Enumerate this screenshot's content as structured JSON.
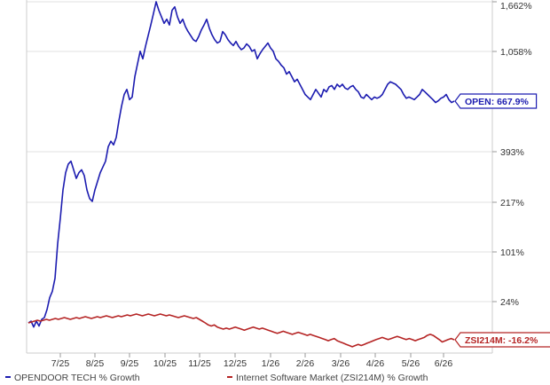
{
  "chart_data": {
    "type": "line",
    "title": "",
    "xlabel": "",
    "ylabel": "",
    "y_scale": "log-like (% growth)",
    "grid": "horizontal",
    "legend_position": "bottom-left",
    "x_ticks": [
      "7/25",
      "8/25",
      "9/25",
      "10/25",
      "11/25",
      "12/25",
      "1/26",
      "2/26",
      "3/26",
      "4/26",
      "5/26",
      "6/26"
    ],
    "y_ticks": [
      "1,662%",
      "1,058%",
      "667.9%",
      "393%",
      "217%",
      "101%",
      "24%",
      "-16.2%"
    ],
    "series": [
      {
        "name": "OPENDOOR TECH % Growth",
        "color": "#1c1cb0",
        "callout": "OPEN: 667.9%",
        "end_value": 667.9,
        "values": [
          0,
          2,
          -4,
          2,
          -3,
          4,
          6,
          15,
          30,
          40,
          60,
          120,
          180,
          260,
          320,
          350,
          360,
          330,
          300,
          320,
          330,
          310,
          260,
          230,
          220,
          260,
          290,
          320,
          340,
          360,
          420,
          450,
          430,
          470,
          560,
          640,
          720,
          760,
          680,
          700,
          860,
          960,
          1060,
          1000,
          1120,
          1250,
          1380,
          1520,
          1662,
          1560,
          1480,
          1400,
          1450,
          1380,
          1560,
          1600,
          1480,
          1400,
          1450,
          1360,
          1300,
          1250,
          1200,
          1180,
          1240,
          1320,
          1380,
          1450,
          1340,
          1260,
          1200,
          1160,
          1180,
          1300,
          1260,
          1200,
          1160,
          1130,
          1180,
          1120,
          1080,
          1100,
          1150,
          1120,
          1060,
          1080,
          1000,
          1040,
          1080,
          1120,
          1160,
          1100,
          1060,
          1000,
          980,
          950,
          930,
          880,
          900,
          860,
          820,
          840,
          800,
          760,
          720,
          700,
          680,
          720,
          760,
          730,
          700,
          760,
          740,
          780,
          790,
          760,
          800,
          780,
          800,
          770,
          760,
          780,
          790,
          760,
          740,
          700,
          690,
          720,
          700,
          680,
          700,
          690,
          700,
          720,
          760,
          800,
          820,
          810,
          800,
          780,
          760,
          720,
          690,
          700,
          690,
          680,
          700,
          720,
          760,
          740,
          720,
          700,
          680,
          660,
          670,
          690,
          700,
          720,
          680,
          660,
          667.9
        ]
      },
      {
        "name": "Internet Software Market (ZSI214M) % Growth",
        "color": "#b52424",
        "callout": "ZSI214M: -16.2%",
        "end_value": -16.2,
        "values": [
          0,
          1,
          2,
          3,
          2,
          3,
          4,
          3,
          4,
          5,
          4,
          5,
          6,
          5,
          4,
          5,
          6,
          5,
          6,
          7,
          6,
          5,
          6,
          7,
          6,
          7,
          8,
          7,
          6,
          7,
          8,
          7,
          8,
          9,
          8,
          9,
          10,
          9,
          8,
          9,
          10,
          9,
          8,
          9,
          10,
          9,
          8,
          9,
          8,
          7,
          6,
          7,
          8,
          7,
          6,
          5,
          6,
          4,
          2,
          0,
          -2,
          -3,
          -2,
          -4,
          -5,
          -6,
          -5,
          -6,
          -5,
          -4,
          -5,
          -6,
          -7,
          -6,
          -5,
          -4,
          -5,
          -6,
          -5,
          -6,
          -7,
          -8,
          -9,
          -10,
          -9,
          -8,
          -9,
          -10,
          -11,
          -10,
          -9,
          -10,
          -11,
          -12,
          -11,
          -12,
          -13,
          -14,
          -15,
          -16,
          -17,
          -16,
          -15,
          -17,
          -18,
          -19,
          -20,
          -21,
          -22,
          -21,
          -20,
          -21,
          -20,
          -19,
          -18,
          -17,
          -16,
          -15,
          -14,
          -15,
          -16,
          -15,
          -14,
          -13,
          -14,
          -15,
          -16,
          -15,
          -16,
          -17,
          -16,
          -15,
          -14,
          -12,
          -11,
          -12,
          -14,
          -16,
          -18,
          -17,
          -16,
          -15,
          -16.2
        ]
      }
    ],
    "callouts": [
      "OPEN: 667.9%",
      "ZSI214M: -16.2%"
    ]
  }
}
